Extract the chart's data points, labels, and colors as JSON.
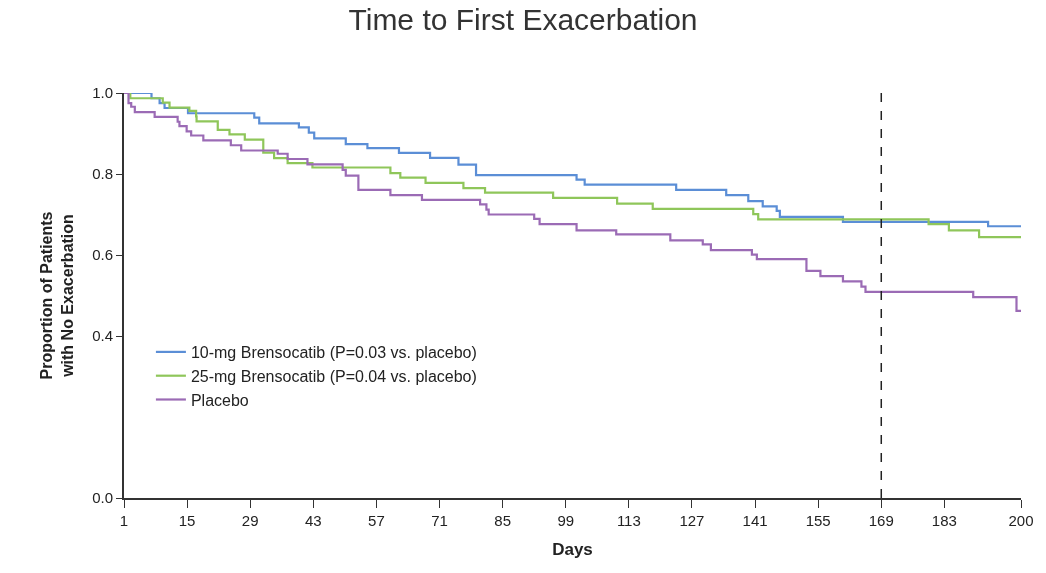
{
  "chart_data": {
    "type": "step",
    "title": "Time to First Exacerbation",
    "xlabel": "Days",
    "ylabel": "Proportion of Patients\nwith No Exacerbation",
    "xlim": [
      1,
      200
    ],
    "xticks": [
      1,
      15,
      29,
      43,
      57,
      71,
      85,
      99,
      113,
      127,
      141,
      155,
      169,
      183,
      200
    ],
    "ylim": [
      0,
      1.0
    ],
    "yticks": [
      {
        "value": 0,
        "label": "0.0"
      },
      0.4,
      0.6,
      0.8,
      {
        "value": 1.0,
        "label": "1.0"
      }
    ],
    "legend": "bottom left",
    "marker": "none",
    "line_style": "solid",
    "ref_lines": [
      {
        "axis": "x",
        "value": 169,
        "label": null,
        "color": "#222222",
        "line_style": "dashed"
      }
    ],
    "series": [
      {
        "name": "10-mg Brensocatib (P=0.03 vs. placebo)",
        "color": "#5b8ed6",
        "x": [
          1,
          7.1,
          8.9,
          10,
          15.2,
          29.9,
          31,
          39.8,
          42,
          43.2,
          50.2,
          55,
          62,
          68.9,
          75.2,
          79.1,
          101.4,
          103.2,
          123.5,
          134.6,
          139.5,
          142.7,
          145.8,
          146.5,
          160.5,
          192.7,
          200
        ],
        "values": [
          1.0,
          0.987,
          0.975,
          0.963,
          0.95,
          0.939,
          0.925,
          0.915,
          0.902,
          0.888,
          0.874,
          0.864,
          0.852,
          0.84,
          0.823,
          0.797,
          0.786,
          0.774,
          0.761,
          0.748,
          0.733,
          0.72,
          0.709,
          0.694,
          0.682,
          0.671,
          0.671
        ]
      },
      {
        "name": "25-mg Brensocatib (P=0.04 vs. placebo)",
        "color": "#8fc65a",
        "x": [
          1,
          2.4,
          9.6,
          11.1,
          15.5,
          17,
          17.1,
          21.8,
          24.4,
          27.8,
          31.9,
          34.3,
          37.3,
          42.8,
          60.1,
          62.3,
          67.9,
          76.3,
          81.1,
          96.2,
          110.4,
          118.3,
          140.6,
          141.7,
          179.5,
          184,
          190.7,
          200
        ],
        "values": [
          1.0,
          0.987,
          0.976,
          0.964,
          0.956,
          0.942,
          0.93,
          0.909,
          0.898,
          0.885,
          0.853,
          0.839,
          0.827,
          0.816,
          0.802,
          0.791,
          0.778,
          0.765,
          0.754,
          0.741,
          0.727,
          0.714,
          0.701,
          0.688,
          0.676,
          0.661,
          0.644,
          0.644
        ]
      },
      {
        "name": "Placebo",
        "color": "#9b6bb5",
        "x": [
          1,
          2,
          2.6,
          3.4,
          7.8,
          12.9,
          13.3,
          14.9,
          15.9,
          18.6,
          24.7,
          27,
          35.1,
          37.3,
          41.7,
          49.5,
          50.2,
          53,
          60.1,
          67.1,
          80,
          81.4,
          81.9,
          92,
          93.2,
          101.4,
          110.2,
          122.2,
          129.4,
          131.2,
          140.3,
          141.4,
          152.4,
          155.5,
          160.5,
          164.6,
          165.5,
          189.4,
          199,
          200
        ],
        "values": [
          1.0,
          0.975,
          0.966,
          0.953,
          0.941,
          0.929,
          0.918,
          0.905,
          0.895,
          0.883,
          0.871,
          0.858,
          0.85,
          0.837,
          0.824,
          0.81,
          0.796,
          0.761,
          0.748,
          0.736,
          0.725,
          0.712,
          0.7,
          0.689,
          0.676,
          0.661,
          0.651,
          0.636,
          0.626,
          0.612,
          0.601,
          0.59,
          0.561,
          0.548,
          0.535,
          0.522,
          0.509,
          0.496,
          0.462,
          0.462
        ]
      }
    ]
  }
}
